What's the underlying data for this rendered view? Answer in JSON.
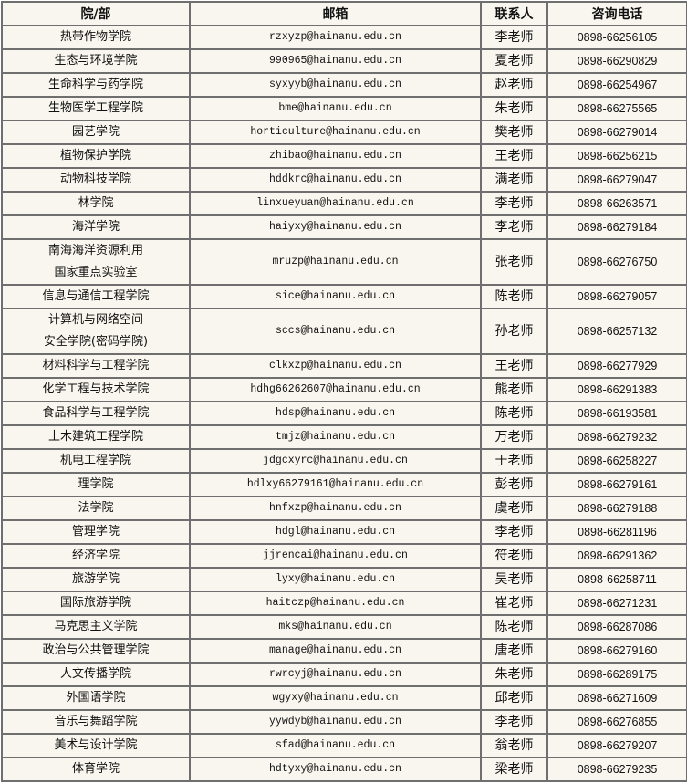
{
  "table": {
    "headers": [
      "院/部",
      "邮箱",
      "联系人",
      "咨询电话"
    ],
    "rows": [
      {
        "dept": "热带作物学院",
        "email": "rzxyzp@hainanu.edu.cn",
        "contact": "李老师",
        "phone": "0898-66256105"
      },
      {
        "dept": "生态与环境学院",
        "email": "990965@hainanu.edu.cn",
        "contact": "夏老师",
        "phone": "0898-66290829"
      },
      {
        "dept": "生命科学与药学院",
        "email": "syxyyb@hainanu.edu.cn",
        "contact": "赵老师",
        "phone": "0898-66254967"
      },
      {
        "dept": "生物医学工程学院",
        "email": "bme@hainanu.edu.cn",
        "contact": "朱老师",
        "phone": "0898-66275565"
      },
      {
        "dept": "园艺学院",
        "email": "horticulture@hainanu.edu.cn",
        "contact": "樊老师",
        "phone": "0898-66279014"
      },
      {
        "dept": "植物保护学院",
        "email": "zhibao@hainanu.edu.cn",
        "contact": "王老师",
        "phone": "0898-66256215"
      },
      {
        "dept": "动物科技学院",
        "email": "hddkrc@hainanu.edu.cn",
        "contact": "满老师",
        "phone": "0898-66279047"
      },
      {
        "dept": "林学院",
        "email": "linxueyuan@hainanu.edu.cn",
        "contact": "李老师",
        "phone": "0898-66263571"
      },
      {
        "dept": "海洋学院",
        "email": "haiyxy@hainanu.edu.cn",
        "contact": "李老师",
        "phone": "0898-66279184"
      },
      {
        "dept": "南海海洋资源利用",
        "dept2": "国家重点实验室",
        "email": "mruzp@hainanu.edu.cn",
        "contact": "张老师",
        "phone": "0898-66276750"
      },
      {
        "dept": "信息与通信工程学院",
        "email": "sice@hainanu.edu.cn",
        "contact": "陈老师",
        "phone": "0898-66279057"
      },
      {
        "dept": "计算机与网络空间",
        "dept2": "安全学院(密码学院)",
        "email": "sccs@hainanu.edu.cn",
        "contact": "孙老师",
        "phone": "0898-66257132"
      },
      {
        "dept": "材料科学与工程学院",
        "email": "clkxzp@hainanu.edu.cn",
        "contact": "王老师",
        "phone": "0898-66277929"
      },
      {
        "dept": "化学工程与技术学院",
        "email": "hdhg66262607@hainanu.edu.cn",
        "contact": "熊老师",
        "phone": "0898-66291383"
      },
      {
        "dept": "食品科学与工程学院",
        "email": "hdsp@hainanu.edu.cn",
        "contact": "陈老师",
        "phone": "0898-66193581"
      },
      {
        "dept": "土木建筑工程学院",
        "email": "tmjz@hainanu.edu.cn",
        "contact": "万老师",
        "phone": "0898-66279232"
      },
      {
        "dept": "机电工程学院",
        "email": "jdgcxyrc@hainanu.edu.cn",
        "contact": "于老师",
        "phone": "0898-66258227"
      },
      {
        "dept": "理学院",
        "email": "hdlxy66279161@hainanu.edu.cn",
        "contact": "彭老师",
        "phone": "0898-66279161"
      },
      {
        "dept": "法学院",
        "email": "hnfxzp@hainanu.edu.cn",
        "contact": "虞老师",
        "phone": "0898-66279188"
      },
      {
        "dept": "管理学院",
        "email": "hdgl@hainanu.edu.cn",
        "contact": "李老师",
        "phone": "0898-66281196"
      },
      {
        "dept": "经济学院",
        "email": "jjrencai@hainanu.edu.cn",
        "contact": "符老师",
        "phone": "0898-66291362"
      },
      {
        "dept": "旅游学院",
        "email": "lyxy@hainanu.edu.cn",
        "contact": "吴老师",
        "phone": "0898-66258711"
      },
      {
        "dept": "国际旅游学院",
        "email": "haitczp@hainanu.edu.cn",
        "contact": "崔老师",
        "phone": "0898-66271231"
      },
      {
        "dept": "马克思主义学院",
        "email": "mks@hainanu.edu.cn",
        "contact": "陈老师",
        "phone": "0898-66287086"
      },
      {
        "dept": "政治与公共管理学院",
        "email": "manage@hainanu.edu.cn",
        "contact": "唐老师",
        "phone": "0898-66279160"
      },
      {
        "dept": "人文传播学院",
        "email": "rwrcyj@hainanu.edu.cn",
        "contact": "朱老师",
        "phone": "0898-66289175"
      },
      {
        "dept": "外国语学院",
        "email": "wgyxy@hainanu.edu.cn",
        "contact": "邱老师",
        "phone": "0898-66271609"
      },
      {
        "dept": "音乐与舞蹈学院",
        "email": "yywdyb@hainanu.edu.cn",
        "contact": "李老师",
        "phone": "0898-66276855"
      },
      {
        "dept": "美术与设计学院",
        "email": "sfad@hainanu.edu.cn",
        "contact": "翁老师",
        "phone": "0898-66279207"
      },
      {
        "dept": "体育学院",
        "email": "hdtyxy@hainanu.edu.cn",
        "contact": "梁老师",
        "phone": "0898-66279235"
      }
    ]
  },
  "colors": {
    "background": "#f8f6ee",
    "border": "#6f6f6f"
  }
}
